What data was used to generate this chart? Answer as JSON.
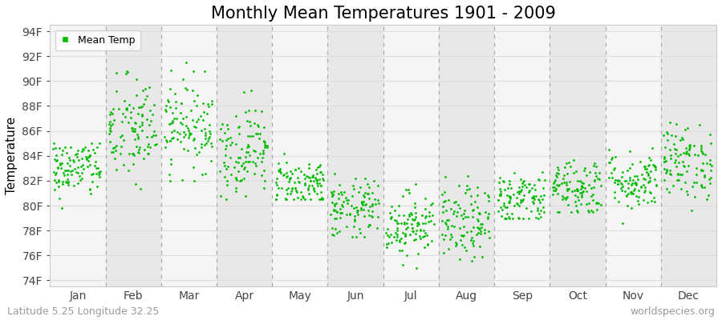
{
  "title": "Monthly Mean Temperatures 1901 - 2009",
  "ylabel": "Temperature",
  "xlabel_labels": [
    "Jan",
    "Feb",
    "Mar",
    "Apr",
    "May",
    "Jun",
    "Jul",
    "Aug",
    "Sep",
    "Oct",
    "Nov",
    "Dec"
  ],
  "ytick_labels": [
    "74F",
    "76F",
    "78F",
    "80F",
    "82F",
    "84F",
    "86F",
    "88F",
    "90F",
    "92F",
    "94F"
  ],
  "ytick_values": [
    74,
    76,
    78,
    80,
    82,
    84,
    86,
    88,
    90,
    92,
    94
  ],
  "ylim": [
    73.5,
    94.5
  ],
  "dot_color": "#00bb00",
  "bg_color": "#ffffff",
  "plot_bg_color": "#ffffff",
  "band_color_odd": "#e8e8e8",
  "band_color_even": "#f5f5f5",
  "legend_label": "Mean Temp",
  "footer_left": "Latitude 5.25 Longitude 32.25",
  "footer_right": "worldspecies.org",
  "title_fontsize": 15,
  "axis_fontsize": 10,
  "footer_fontsize": 9,
  "n_years": 109,
  "seed": 42,
  "monthly_mean": [
    83.0,
    86.0,
    86.5,
    84.5,
    81.8,
    79.7,
    78.5,
    78.5,
    80.5,
    81.5,
    82.0,
    83.5
  ],
  "monthly_std": [
    1.2,
    2.2,
    1.8,
    1.8,
    1.0,
    1.2,
    1.3,
    1.5,
    1.2,
    1.2,
    1.2,
    1.5
  ],
  "monthly_min": [
    78.0,
    78.5,
    82.0,
    80.5,
    80.5,
    77.5,
    75.0,
    75.0,
    79.0,
    79.5,
    78.5,
    78.5
  ],
  "monthly_max": [
    85.0,
    93.5,
    91.5,
    90.5,
    87.5,
    87.5,
    83.5,
    83.5,
    85.5,
    85.5,
    87.5,
    88.5
  ],
  "dashed_line_color": "#aaaaaa",
  "grid_color": "#dddddd"
}
